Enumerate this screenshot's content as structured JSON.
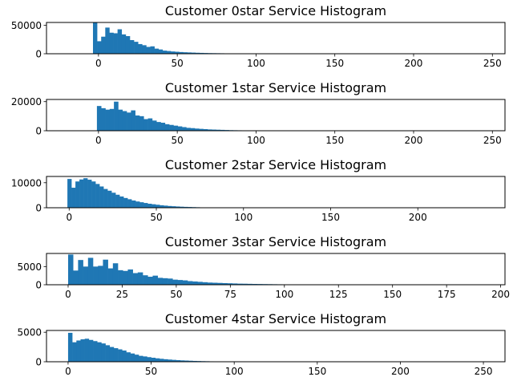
{
  "colors": {
    "bar": "#1f77b4",
    "axis": "#000000",
    "background": "#ffffff"
  },
  "chart_data": [
    {
      "type": "bar",
      "title": "Customer 0star Service Histogram",
      "xlabel": "",
      "ylabel": "",
      "xlim": [
        -33,
        258
      ],
      "ylim": [
        0,
        55000
      ],
      "xticks": [
        0,
        50,
        100,
        150,
        200,
        250
      ],
      "yticks": [
        0,
        50000
      ],
      "bin_width": 2.6,
      "bin_start": -3.5,
      "values": [
        55000,
        22000,
        30000,
        46000,
        37000,
        36000,
        43000,
        34000,
        31000,
        24000,
        21000,
        17000,
        15000,
        12000,
        13000,
        9000,
        7500,
        5500,
        4800,
        4000,
        3500,
        3000,
        2600,
        2300,
        2000,
        1700,
        1500,
        1300,
        1100,
        1000,
        900,
        800,
        700,
        650,
        600,
        550,
        500,
        450,
        400,
        380,
        350,
        320,
        300,
        280,
        260,
        240,
        220,
        200,
        180,
        160,
        150
      ]
    },
    {
      "type": "bar",
      "title": "Customer 1star Service Histogram",
      "xlabel": "",
      "ylabel": "",
      "xlim": [
        -33,
        258
      ],
      "ylim": [
        0,
        21500
      ],
      "xticks": [
        0,
        50,
        100,
        150,
        200,
        250
      ],
      "yticks": [
        0,
        20000
      ],
      "bin_width": 2.7,
      "bin_start": -1,
      "values": [
        17000,
        15500,
        14500,
        15000,
        20000,
        14500,
        13500,
        12500,
        14000,
        10500,
        10000,
        8000,
        8500,
        7000,
        6000,
        5500,
        4500,
        4000,
        3500,
        3000,
        2500,
        2000,
        1800,
        1500,
        1300,
        1100,
        900,
        800,
        700,
        600,
        500,
        400,
        350,
        300,
        250,
        200,
        150,
        100,
        80
      ]
    },
    {
      "type": "bar",
      "title": "Customer 2star Service Histogram",
      "xlabel": "",
      "ylabel": "",
      "xlim": [
        -13,
        250
      ],
      "ylim": [
        0,
        12500
      ],
      "xticks": [
        0,
        50,
        100,
        150,
        200
      ],
      "yticks": [
        0,
        10000
      ],
      "bin_width": 2.3,
      "bin_start": -1,
      "values": [
        11500,
        8000,
        10500,
        11300,
        11800,
        11200,
        10500,
        9500,
        8500,
        7500,
        6800,
        6000,
        5200,
        4500,
        3900,
        3400,
        2900,
        2500,
        2200,
        1900,
        1600,
        1400,
        1200,
        1000,
        850,
        700,
        600,
        500,
        420,
        350,
        300,
        250,
        200,
        160,
        130,
        100,
        80,
        60,
        50,
        40,
        30
      ]
    },
    {
      "type": "bar",
      "title": "Customer 3star Service Histogram",
      "xlabel": "",
      "ylabel": "",
      "xlim": [
        -10,
        202
      ],
      "ylim": [
        0,
        8600
      ],
      "xticks": [
        0,
        25,
        50,
        75,
        100,
        125,
        150,
        175,
        200
      ],
      "yticks": [
        0,
        5000
      ],
      "bin_width": 2.3,
      "bin_start": 0,
      "values": [
        8300,
        3900,
        6800,
        5000,
        7400,
        5000,
        5200,
        6900,
        4500,
        5900,
        4000,
        3800,
        4200,
        3200,
        3400,
        2600,
        2200,
        2500,
        1900,
        1800,
        1700,
        1400,
        1300,
        1200,
        1000,
        900,
        800,
        700,
        600,
        550,
        500,
        450,
        400,
        350,
        300,
        280,
        250,
        220,
        200,
        180,
        160,
        140,
        120,
        100,
        90,
        80,
        70,
        60,
        50
      ]
    },
    {
      "type": "bar",
      "title": "Customer 4star Service Histogram",
      "xlabel": "",
      "ylabel": "",
      "xlim": [
        -13,
        263
      ],
      "ylim": [
        0,
        5300
      ],
      "xticks": [
        0,
        50,
        100,
        150,
        200,
        250
      ],
      "yticks": [
        0,
        5000
      ],
      "bin_width": 2.5,
      "bin_start": 0,
      "values": [
        4900,
        3300,
        3600,
        3800,
        3900,
        3700,
        3500,
        3300,
        3100,
        2800,
        2500,
        2300,
        2100,
        1900,
        1600,
        1400,
        1200,
        1000,
        900,
        780,
        680,
        580,
        500,
        430,
        370,
        320,
        270,
        230,
        200,
        170,
        140,
        120,
        100,
        85,
        70,
        60,
        50,
        40
      ]
    }
  ]
}
